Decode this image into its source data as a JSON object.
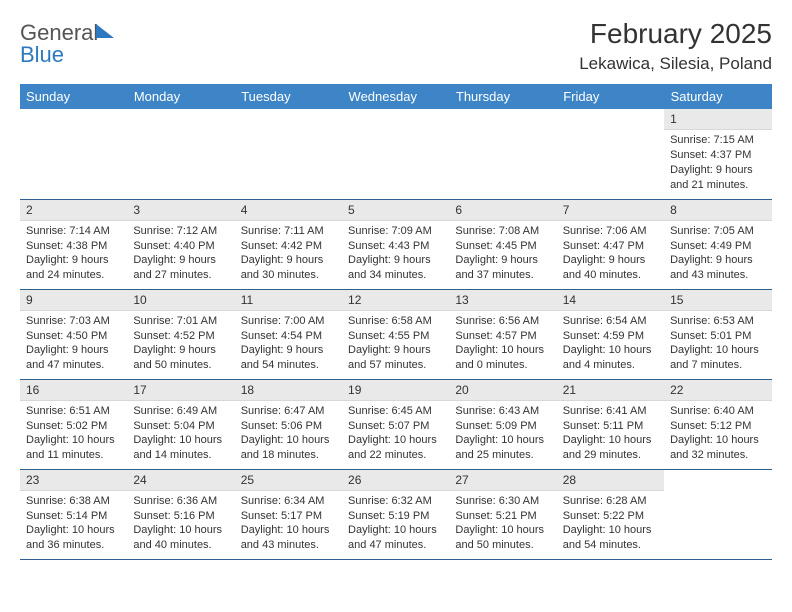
{
  "logo": {
    "line1": "General",
    "line2": "Blue"
  },
  "header": {
    "title": "February 2025",
    "location": "Lekawica, Silesia, Poland"
  },
  "colors": {
    "header_bg": "#3d85c6",
    "header_text": "#ffffff",
    "daynum_bg": "#e9e9e9",
    "border": "#2d5f8f",
    "accent": "#2d79c0"
  },
  "weekdays": [
    "Sunday",
    "Monday",
    "Tuesday",
    "Wednesday",
    "Thursday",
    "Friday",
    "Saturday"
  ],
  "weeks": [
    [
      null,
      null,
      null,
      null,
      null,
      null,
      {
        "n": "1",
        "sunrise": "Sunrise: 7:15 AM",
        "sunset": "Sunset: 4:37 PM",
        "daylight": "Daylight: 9 hours and 21 minutes."
      }
    ],
    [
      {
        "n": "2",
        "sunrise": "Sunrise: 7:14 AM",
        "sunset": "Sunset: 4:38 PM",
        "daylight": "Daylight: 9 hours and 24 minutes."
      },
      {
        "n": "3",
        "sunrise": "Sunrise: 7:12 AM",
        "sunset": "Sunset: 4:40 PM",
        "daylight": "Daylight: 9 hours and 27 minutes."
      },
      {
        "n": "4",
        "sunrise": "Sunrise: 7:11 AM",
        "sunset": "Sunset: 4:42 PM",
        "daylight": "Daylight: 9 hours and 30 minutes."
      },
      {
        "n": "5",
        "sunrise": "Sunrise: 7:09 AM",
        "sunset": "Sunset: 4:43 PM",
        "daylight": "Daylight: 9 hours and 34 minutes."
      },
      {
        "n": "6",
        "sunrise": "Sunrise: 7:08 AM",
        "sunset": "Sunset: 4:45 PM",
        "daylight": "Daylight: 9 hours and 37 minutes."
      },
      {
        "n": "7",
        "sunrise": "Sunrise: 7:06 AM",
        "sunset": "Sunset: 4:47 PM",
        "daylight": "Daylight: 9 hours and 40 minutes."
      },
      {
        "n": "8",
        "sunrise": "Sunrise: 7:05 AM",
        "sunset": "Sunset: 4:49 PM",
        "daylight": "Daylight: 9 hours and 43 minutes."
      }
    ],
    [
      {
        "n": "9",
        "sunrise": "Sunrise: 7:03 AM",
        "sunset": "Sunset: 4:50 PM",
        "daylight": "Daylight: 9 hours and 47 minutes."
      },
      {
        "n": "10",
        "sunrise": "Sunrise: 7:01 AM",
        "sunset": "Sunset: 4:52 PM",
        "daylight": "Daylight: 9 hours and 50 minutes."
      },
      {
        "n": "11",
        "sunrise": "Sunrise: 7:00 AM",
        "sunset": "Sunset: 4:54 PM",
        "daylight": "Daylight: 9 hours and 54 minutes."
      },
      {
        "n": "12",
        "sunrise": "Sunrise: 6:58 AM",
        "sunset": "Sunset: 4:55 PM",
        "daylight": "Daylight: 9 hours and 57 minutes."
      },
      {
        "n": "13",
        "sunrise": "Sunrise: 6:56 AM",
        "sunset": "Sunset: 4:57 PM",
        "daylight": "Daylight: 10 hours and 0 minutes."
      },
      {
        "n": "14",
        "sunrise": "Sunrise: 6:54 AM",
        "sunset": "Sunset: 4:59 PM",
        "daylight": "Daylight: 10 hours and 4 minutes."
      },
      {
        "n": "15",
        "sunrise": "Sunrise: 6:53 AM",
        "sunset": "Sunset: 5:01 PM",
        "daylight": "Daylight: 10 hours and 7 minutes."
      }
    ],
    [
      {
        "n": "16",
        "sunrise": "Sunrise: 6:51 AM",
        "sunset": "Sunset: 5:02 PM",
        "daylight": "Daylight: 10 hours and 11 minutes."
      },
      {
        "n": "17",
        "sunrise": "Sunrise: 6:49 AM",
        "sunset": "Sunset: 5:04 PM",
        "daylight": "Daylight: 10 hours and 14 minutes."
      },
      {
        "n": "18",
        "sunrise": "Sunrise: 6:47 AM",
        "sunset": "Sunset: 5:06 PM",
        "daylight": "Daylight: 10 hours and 18 minutes."
      },
      {
        "n": "19",
        "sunrise": "Sunrise: 6:45 AM",
        "sunset": "Sunset: 5:07 PM",
        "daylight": "Daylight: 10 hours and 22 minutes."
      },
      {
        "n": "20",
        "sunrise": "Sunrise: 6:43 AM",
        "sunset": "Sunset: 5:09 PM",
        "daylight": "Daylight: 10 hours and 25 minutes."
      },
      {
        "n": "21",
        "sunrise": "Sunrise: 6:41 AM",
        "sunset": "Sunset: 5:11 PM",
        "daylight": "Daylight: 10 hours and 29 minutes."
      },
      {
        "n": "22",
        "sunrise": "Sunrise: 6:40 AM",
        "sunset": "Sunset: 5:12 PM",
        "daylight": "Daylight: 10 hours and 32 minutes."
      }
    ],
    [
      {
        "n": "23",
        "sunrise": "Sunrise: 6:38 AM",
        "sunset": "Sunset: 5:14 PM",
        "daylight": "Daylight: 10 hours and 36 minutes."
      },
      {
        "n": "24",
        "sunrise": "Sunrise: 6:36 AM",
        "sunset": "Sunset: 5:16 PM",
        "daylight": "Daylight: 10 hours and 40 minutes."
      },
      {
        "n": "25",
        "sunrise": "Sunrise: 6:34 AM",
        "sunset": "Sunset: 5:17 PM",
        "daylight": "Daylight: 10 hours and 43 minutes."
      },
      {
        "n": "26",
        "sunrise": "Sunrise: 6:32 AM",
        "sunset": "Sunset: 5:19 PM",
        "daylight": "Daylight: 10 hours and 47 minutes."
      },
      {
        "n": "27",
        "sunrise": "Sunrise: 6:30 AM",
        "sunset": "Sunset: 5:21 PM",
        "daylight": "Daylight: 10 hours and 50 minutes."
      },
      {
        "n": "28",
        "sunrise": "Sunrise: 6:28 AM",
        "sunset": "Sunset: 5:22 PM",
        "daylight": "Daylight: 10 hours and 54 minutes."
      },
      null
    ]
  ]
}
